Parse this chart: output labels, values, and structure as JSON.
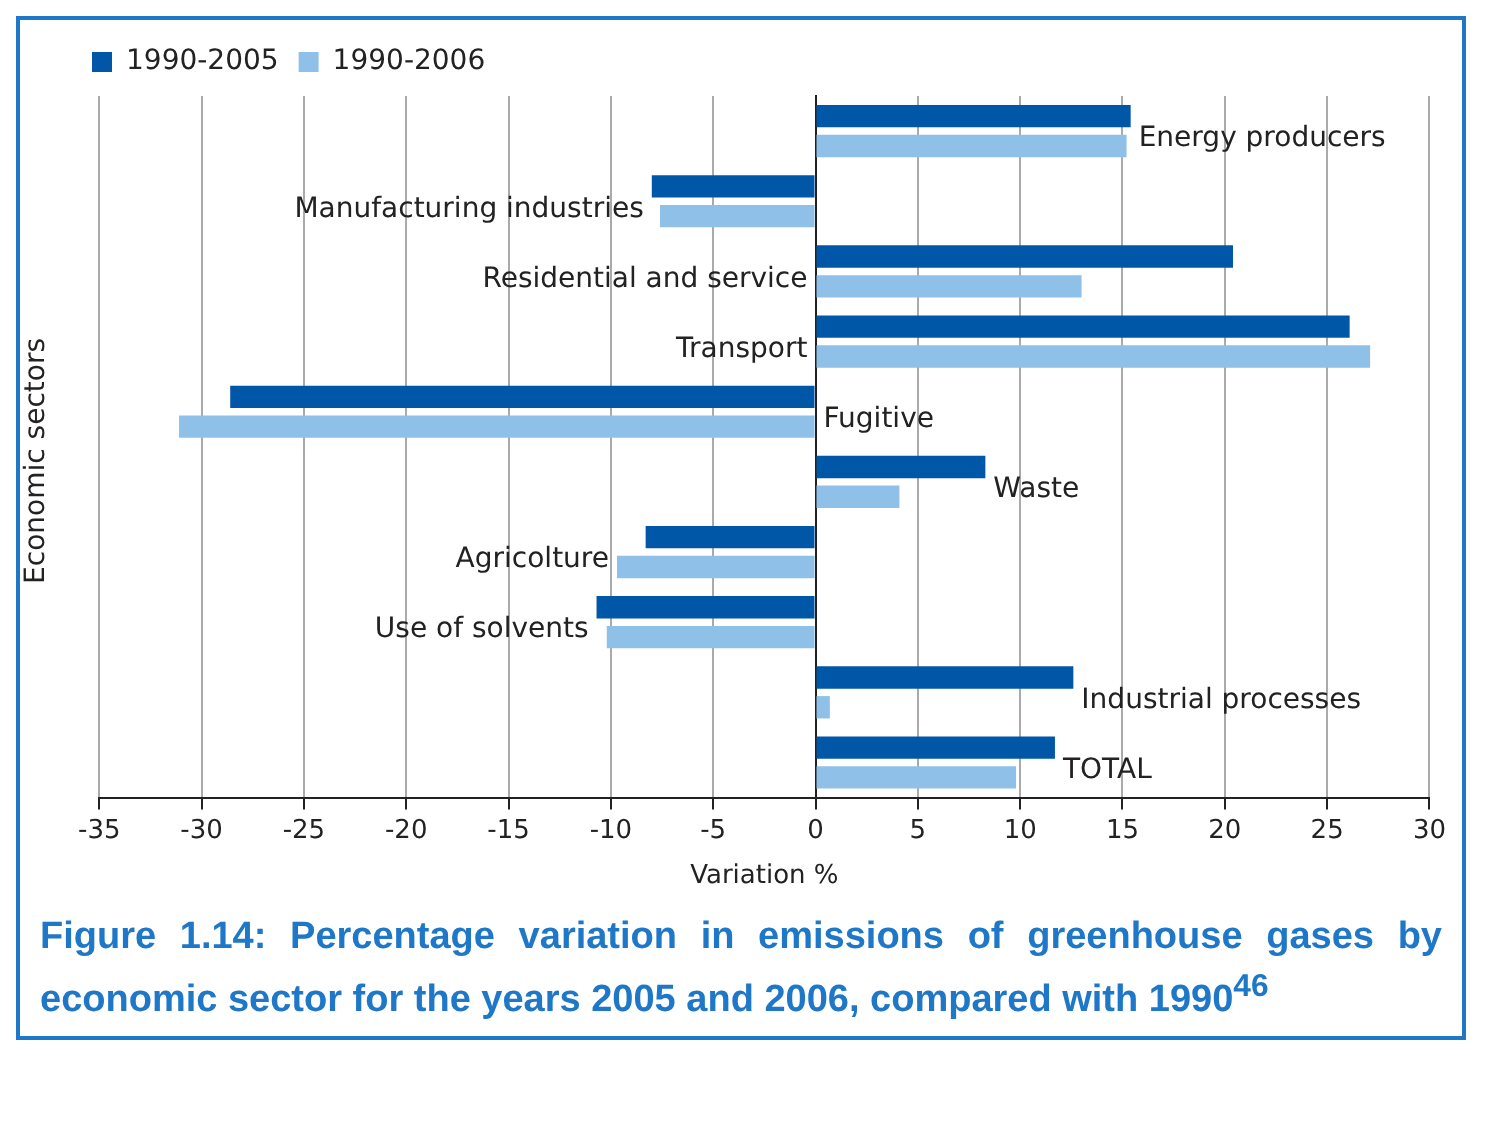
{
  "chart_data": {
    "type": "bar",
    "orientation": "horizontal",
    "title": "Figure 1.14: Percentage variation in emissions of greenhouse gases by economic sector for the years 2005 and 2006, compared with 1990$^{46}$",
    "xlabel": "Variation %",
    "ylabel": "Economic sectors",
    "categories": [
      "Energy producers",
      "Manufacturing industries",
      "Residential and service",
      "Transport",
      "Fugitive",
      "Waste",
      "Agricolture",
      "Use of solvents",
      "Industrial processes",
      "TOTAL"
    ],
    "series": [
      {
        "name": "1990-2005",
        "color": "#0057a8",
        "values": [
          15.4,
          -8.0,
          20.4,
          26.1,
          -28.6,
          8.3,
          -8.3,
          -10.7,
          12.6,
          11.7
        ]
      },
      {
        "name": "1990-2006",
        "color": "#8fc0e8",
        "values": [
          15.2,
          -7.6,
          13.0,
          27.1,
          -31.1,
          4.1,
          -9.7,
          -10.2,
          0.7,
          9.8
        ]
      }
    ],
    "xlim": [
      -35,
      30
    ],
    "xticks": [
      -35,
      -30,
      -25,
      -20,
      -15,
      -10,
      -5,
      0,
      5,
      10,
      15,
      20,
      25,
      30
    ],
    "grid": "x",
    "legend": "top left"
  }
}
